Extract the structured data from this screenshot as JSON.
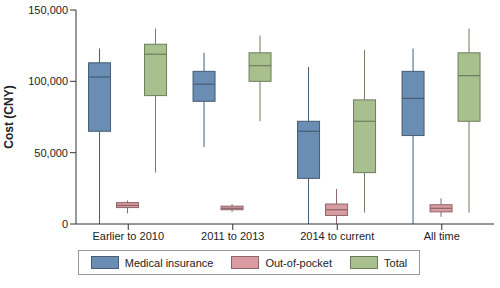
{
  "chart_data": {
    "type": "box",
    "y_label": "Cost (CNY)",
    "categories": [
      "Earlier to 2010",
      "2011 to 2013",
      "2014 to current",
      "All time"
    ],
    "ylim": [
      0,
      150000
    ],
    "yticks": [
      0,
      {
        "value": 50000,
        "label": "50,000"
      },
      {
        "value": 100000,
        "label": "100,000"
      },
      {
        "value": 150000,
        "label": "150,000"
      }
    ],
    "grid": false,
    "legend": "bottom",
    "series": [
      {
        "name": "Medical insurance",
        "color": "#6a8db3",
        "min": [
          0,
          54000,
          0,
          0
        ],
        "q1": [
          65000,
          86000,
          32000,
          62000
        ],
        "median": [
          103000,
          98000,
          65000,
          88000
        ],
        "q3": [
          113000,
          107000,
          72000,
          107000
        ],
        "max": [
          123000,
          120000,
          110000,
          123000
        ]
      },
      {
        "name": "Out-of-pocket",
        "color": "#d89ca1",
        "min": [
          7500,
          8500,
          0,
          5000
        ],
        "q1": [
          11500,
          10000,
          6000,
          8500
        ],
        "median": [
          13000,
          11000,
          10000,
          11000
        ],
        "q3": [
          15000,
          12500,
          14000,
          13500
        ],
        "max": [
          16500,
          14000,
          24500,
          18000
        ]
      },
      {
        "name": "Total",
        "color": "#a7c08d",
        "min": [
          36000,
          72000,
          8000,
          8000
        ],
        "q1": [
          90000,
          100000,
          36000,
          72000
        ],
        "median": [
          119000,
          111000,
          72000,
          104000
        ],
        "q3": [
          126000,
          120000,
          87000,
          120000
        ],
        "max": [
          137000,
          132000,
          122000,
          137000
        ]
      }
    ]
  }
}
